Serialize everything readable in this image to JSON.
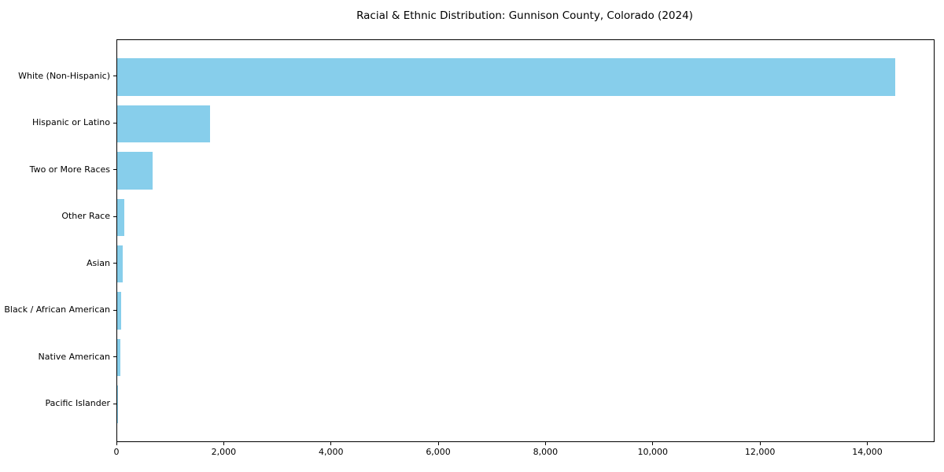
{
  "chart_data": {
    "type": "bar",
    "orientation": "horizontal",
    "title": "Racial & Ethnic Distribution: Gunnison County, Colorado (2024)",
    "categories": [
      "White (Non-Hispanic)",
      "Hispanic or Latino",
      "Two or More Races",
      "Other Race",
      "Asian",
      "Black / African American",
      "Native American",
      "Pacific Islander"
    ],
    "values": [
      14500,
      1730,
      660,
      130,
      110,
      80,
      55,
      10
    ],
    "bar_color": "#87ceeb",
    "axis_color": "#000000",
    "text_color": "#000000",
    "background_color": "#ffffff",
    "xlim": [
      0,
      15225
    ],
    "x_ticks": [
      0,
      2000,
      4000,
      6000,
      8000,
      10000,
      12000,
      14000
    ],
    "x_tick_labels": [
      "0",
      "2,000",
      "4,000",
      "6,000",
      "8,000",
      "10,000",
      "12,000",
      "14,000"
    ],
    "xlabel": "",
    "ylabel": "",
    "grid": false,
    "legend_position": "none",
    "bar_height_fraction": 0.8
  }
}
